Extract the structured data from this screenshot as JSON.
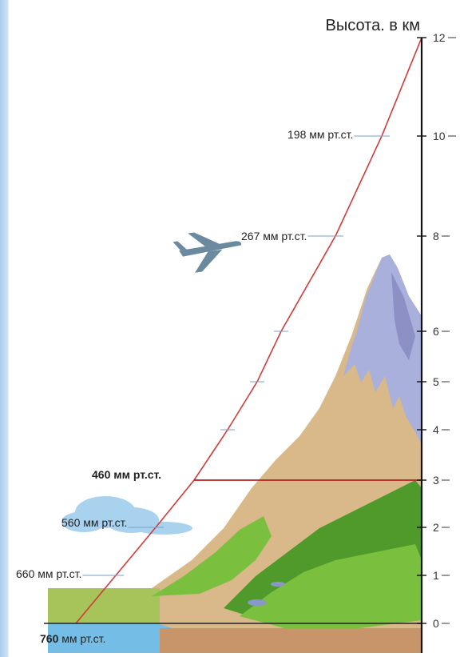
{
  "axis": {
    "title": "Высота. в км",
    "ticks": [
      {
        "km": 0,
        "label": "0"
      },
      {
        "km": 1,
        "label": "1"
      },
      {
        "km": 2,
        "label": "2"
      },
      {
        "km": 3,
        "label": "3"
      },
      {
        "km": 4,
        "label": "4"
      },
      {
        "km": 5,
        "label": "5"
      },
      {
        "km": 6,
        "label": "6"
      },
      {
        "km": 8,
        "label": "8"
      },
      {
        "km": 10,
        "label": "10"
      },
      {
        "km": 12,
        "label": "12"
      }
    ]
  },
  "pressure_labels": [
    {
      "km": 0,
      "value": "760",
      "unit": "мм рт.ст."
    },
    {
      "km": 1,
      "value": "660",
      "unit": "мм рт.ст."
    },
    {
      "km": 2,
      "value": "560",
      "unit": "мм рт.ст."
    },
    {
      "km": 3,
      "value": "460",
      "unit": "мм рт.ст."
    },
    {
      "km": 8,
      "value": "267",
      "unit": "мм рт.ст."
    },
    {
      "km": 10,
      "value": "198",
      "unit": "мм рт.ст."
    }
  ],
  "highlight_km": 3,
  "icons": [
    "airplane-icon",
    "cloud-icon",
    "mountain-illustration"
  ],
  "colors": {
    "curve": "#d23a3a",
    "highlight_line": "#b22222",
    "snow": "#aab0dc",
    "rock": "#d9b98a",
    "rock_dark": "#b9956a",
    "grass": "#7bbf3f",
    "grass_dark": "#4f9a2a",
    "field": "#a7c45a",
    "water": "#74bde6",
    "ground": "#c8956a",
    "airplane": "#6b8aa0",
    "cloud": "#a9d2ee"
  }
}
